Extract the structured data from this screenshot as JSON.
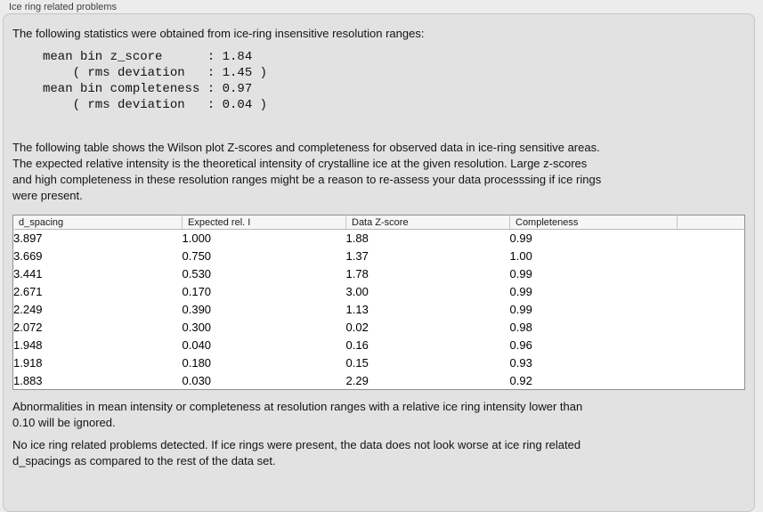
{
  "panel": {
    "title": "Ice ring related problems",
    "intro": "The following statistics were obtained from ice-ring insensitive resolution ranges:",
    "stats_lines": [
      "mean bin z_score      : 1.84",
      "    ( rms deviation   : 1.45 )",
      "mean bin completeness : 0.97",
      "    ( rms deviation   : 0.04 )"
    ],
    "description_lines": [
      "The following table shows the Wilson plot Z-scores and completeness for observed data in ice-ring sensitive areas.",
      "The expected relative intensity is the theoretical intensity of crystalline ice at the given resolution. Large z-scores",
      "and high completeness in these resolution ranges might be a reason to re-assess your data processsing if ice rings",
      "were present."
    ],
    "footnote_lines": [
      "Abnormalities in mean intensity or completeness at resolution ranges with a relative ice ring intensity lower than",
      "0.10 will be ignored."
    ],
    "conclusion_lines": [
      "No ice ring related problems detected. If ice rings were present, the data does not look worse at ice ring related",
      "d_spacings as compared to the rest of the data set."
    ]
  },
  "table": {
    "columns": [
      "d_spacing",
      "Expected rel. I",
      "Data Z-score",
      "Completeness"
    ],
    "rows": [
      [
        "3.897",
        "1.000",
        "1.88",
        "0.99"
      ],
      [
        "3.669",
        "0.750",
        "1.37",
        "1.00"
      ],
      [
        "3.441",
        "0.530",
        "1.78",
        "0.99"
      ],
      [
        "2.671",
        "0.170",
        "3.00",
        "0.99"
      ],
      [
        "2.249",
        "0.390",
        "1.13",
        "0.99"
      ],
      [
        "2.072",
        "0.300",
        "0.02",
        "0.98"
      ],
      [
        "1.948",
        "0.040",
        "0.16",
        "0.96"
      ],
      [
        "1.918",
        "0.180",
        "0.15",
        "0.93"
      ],
      [
        "1.883",
        "0.030",
        "2.29",
        "0.92"
      ]
    ]
  },
  "colors": {
    "page_background": "#ececec",
    "panel_background": "#e2e2e2",
    "panel_border": "#c6c6c6",
    "table_border": "#8f8f8f",
    "table_header_background": "#f6f6f6",
    "text": "#141414"
  }
}
